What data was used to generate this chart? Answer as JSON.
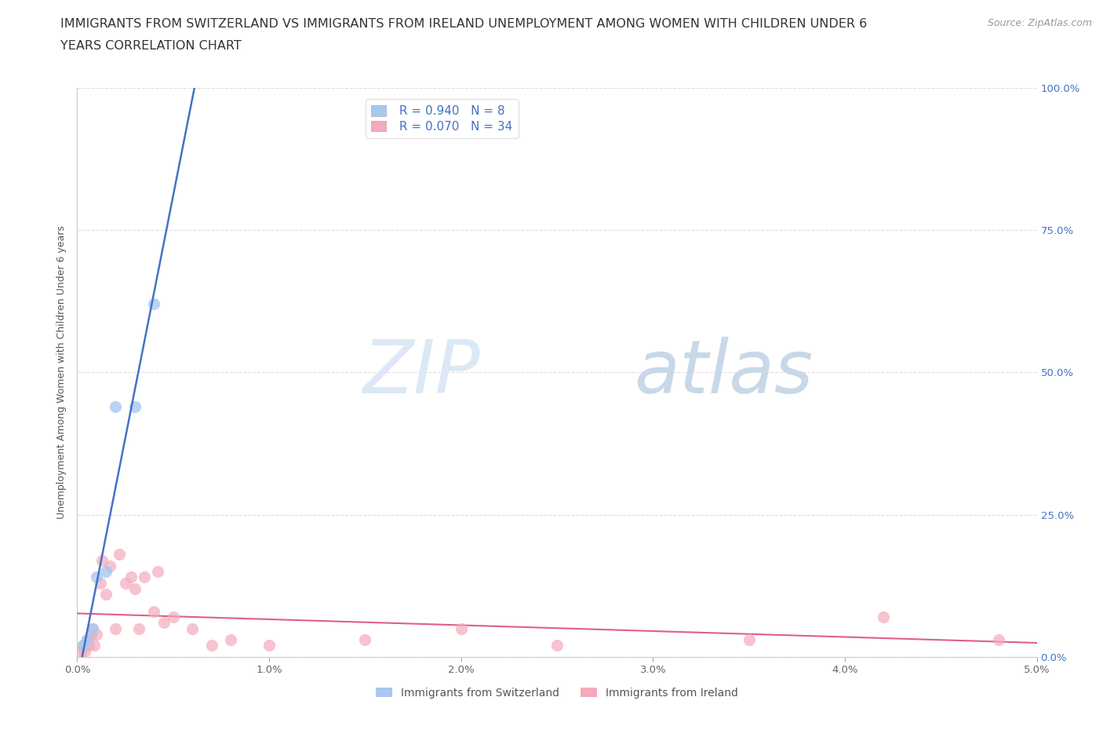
{
  "title_line1": "IMMIGRANTS FROM SWITZERLAND VS IMMIGRANTS FROM IRELAND UNEMPLOYMENT AMONG WOMEN WITH CHILDREN UNDER 6",
  "title_line2": "YEARS CORRELATION CHART",
  "source": "Source: ZipAtlas.com",
  "ylabel": "Unemployment Among Women with Children Under 6 years",
  "xlim": [
    0,
    0.05
  ],
  "ylim": [
    0,
    1.0
  ],
  "xticks": [
    0.0,
    0.01,
    0.02,
    0.03,
    0.04,
    0.05
  ],
  "xtick_labels": [
    "0.0%",
    "1.0%",
    "2.0%",
    "3.0%",
    "4.0%",
    "5.0%"
  ],
  "yticks": [
    0.0,
    0.25,
    0.5,
    0.75,
    1.0
  ],
  "ytick_labels": [
    "0.0%",
    "25.0%",
    "50.0%",
    "75.0%",
    "100.0%"
  ],
  "switzerland_x": [
    0.0003,
    0.0005,
    0.0008,
    0.001,
    0.0015,
    0.002,
    0.003,
    0.004
  ],
  "switzerland_y": [
    0.02,
    0.03,
    0.05,
    0.14,
    0.15,
    0.44,
    0.44,
    0.62
  ],
  "ireland_x": [
    0.0002,
    0.0003,
    0.0004,
    0.0005,
    0.0006,
    0.0007,
    0.0008,
    0.0009,
    0.001,
    0.0012,
    0.0013,
    0.0015,
    0.0017,
    0.002,
    0.0022,
    0.0025,
    0.0028,
    0.003,
    0.0032,
    0.0035,
    0.004,
    0.0042,
    0.0045,
    0.005,
    0.006,
    0.007,
    0.008,
    0.01,
    0.015,
    0.02,
    0.025,
    0.035,
    0.042,
    0.048
  ],
  "ireland_y": [
    0.01,
    0.02,
    0.01,
    0.03,
    0.02,
    0.04,
    0.05,
    0.02,
    0.04,
    0.13,
    0.17,
    0.11,
    0.16,
    0.05,
    0.18,
    0.13,
    0.14,
    0.12,
    0.05,
    0.14,
    0.08,
    0.15,
    0.06,
    0.07,
    0.05,
    0.02,
    0.03,
    0.02,
    0.03,
    0.05,
    0.02,
    0.03,
    0.07,
    0.03
  ],
  "switzerland_color": "#A8C8F0",
  "ireland_color": "#F4AABB",
  "switzerland_line_color": "#4472C4",
  "ireland_line_color": "#E06080",
  "switzerland_R": 0.94,
  "switzerland_N": 8,
  "ireland_R": 0.07,
  "ireland_N": 34,
  "legend_label_swiss": "Immigrants from Switzerland",
  "legend_label_ireland": "Immigrants from Ireland",
  "watermark_zip": "ZIP",
  "watermark_atlas": "atlas",
  "background_color": "#ffffff",
  "grid_color": "#dddddd",
  "title_fontsize": 11.5,
  "axis_label_fontsize": 9,
  "tick_fontsize": 9.5,
  "legend_fontsize": 11,
  "source_fontsize": 9
}
